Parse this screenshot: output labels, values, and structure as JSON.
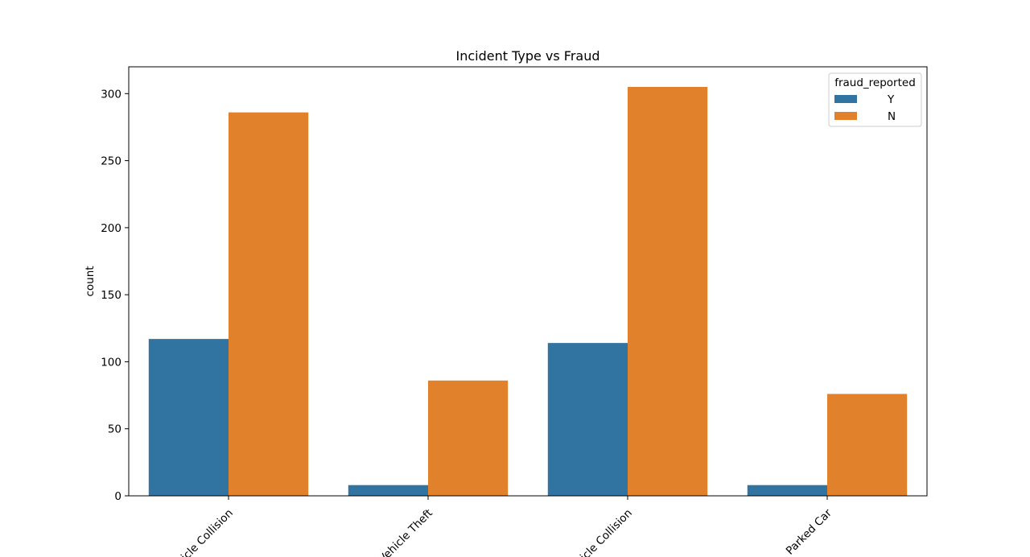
{
  "chart_data": {
    "type": "bar",
    "title": "Incident Type vs Fraud",
    "xlabel": "",
    "ylabel": "count",
    "categories": [
      "Single Vehicle Collision",
      "Vehicle Theft",
      "Multi-vehicle Collision",
      "Parked Car"
    ],
    "visible_tick_labels": [
      "icle Collision",
      "Vehicle Theft",
      "icle Collision",
      "Parked Car"
    ],
    "series": [
      {
        "name": "Y",
        "color": "#3274a1",
        "values": [
          117,
          8,
          114,
          8
        ]
      },
      {
        "name": "N",
        "color": "#e1812c",
        "values": [
          286,
          86,
          305,
          76
        ]
      }
    ],
    "yticks": [
      0,
      50,
      100,
      150,
      200,
      250,
      300
    ],
    "ylim": [
      0,
      320
    ],
    "grid": false,
    "legend": {
      "title": "fraud_reported",
      "placement": "top-right"
    }
  }
}
